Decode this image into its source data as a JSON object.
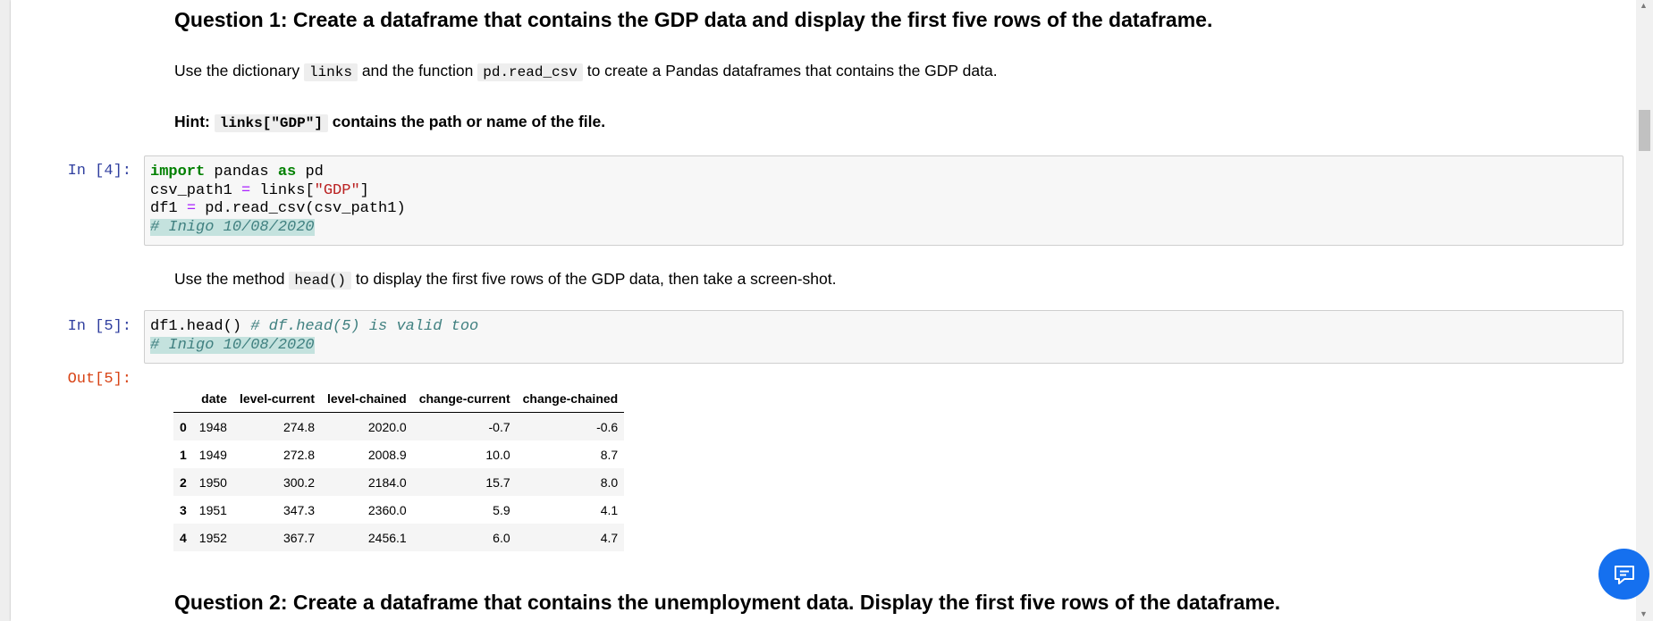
{
  "q1": {
    "title": "Question 1: Create a dataframe that contains the GDP data and display the first five rows of the dataframe.",
    "para1": {
      "t1": "Use the dictionary ",
      "c1": "links",
      "t2": " and the function ",
      "c2": "pd.read_csv",
      "t3": " to create a Pandas dataframes that contains the GDP data."
    },
    "hint": {
      "t1": "Hint: ",
      "c1": "links[\"GDP\"]",
      "t2": " contains the path or name of the file."
    }
  },
  "cell4": {
    "prompt": "In [4]:",
    "code": {
      "l1_kw1": "import",
      "l1_t1": " pandas ",
      "l1_kw2": "as",
      "l1_t2": " pd",
      "l2_t1": "csv_path1 ",
      "l2_op": "=",
      "l2_t2": " links[",
      "l2_str": "\"GDP\"",
      "l2_t3": "]",
      "l3_t1": "df1 ",
      "l3_op": "=",
      "l3_t2": " pd.read_csv(csv_path1)",
      "l4_cm": "# Inigo 10/08/2020"
    }
  },
  "para2": {
    "t1": "Use the method ",
    "c1": "head()",
    "t2": " to display the first five rows of the GDP data, then take a screen-shot."
  },
  "cell5": {
    "prompt": "In [5]:",
    "out_prompt": "Out[5]:",
    "code": {
      "l1_t1": "df1.head() ",
      "l1_cm": "# df.head(5) is valid too",
      "l2_cm": "# Inigo 10/08/2020"
    }
  },
  "table": {
    "columns": [
      "",
      "date",
      "level-current",
      "level-chained",
      "change-current",
      "change-chained"
    ],
    "rows": [
      [
        "0",
        "1948",
        "274.8",
        "2020.0",
        "-0.7",
        "-0.6"
      ],
      [
        "1",
        "1949",
        "272.8",
        "2008.9",
        "10.0",
        "8.7"
      ],
      [
        "2",
        "1950",
        "300.2",
        "2184.0",
        "15.7",
        "8.0"
      ],
      [
        "3",
        "1951",
        "347.3",
        "2360.0",
        "5.9",
        "4.1"
      ],
      [
        "4",
        "1952",
        "367.7",
        "2456.1",
        "6.0",
        "4.7"
      ]
    ]
  },
  "q2": {
    "title": "Question 2: Create a dataframe that contains the unemployment data. Display the first five rows of the dataframe."
  },
  "icons": {
    "chat": "chat-icon",
    "scroll_up": "scroll-up-arrow",
    "scroll_down": "scroll-down-arrow"
  },
  "colors": {
    "in_prompt": "#303f9f",
    "out_prompt": "#d84315",
    "keyword": "#008000",
    "string": "#ba2121",
    "comment": "#408080",
    "chat_button": "#1570ef"
  }
}
